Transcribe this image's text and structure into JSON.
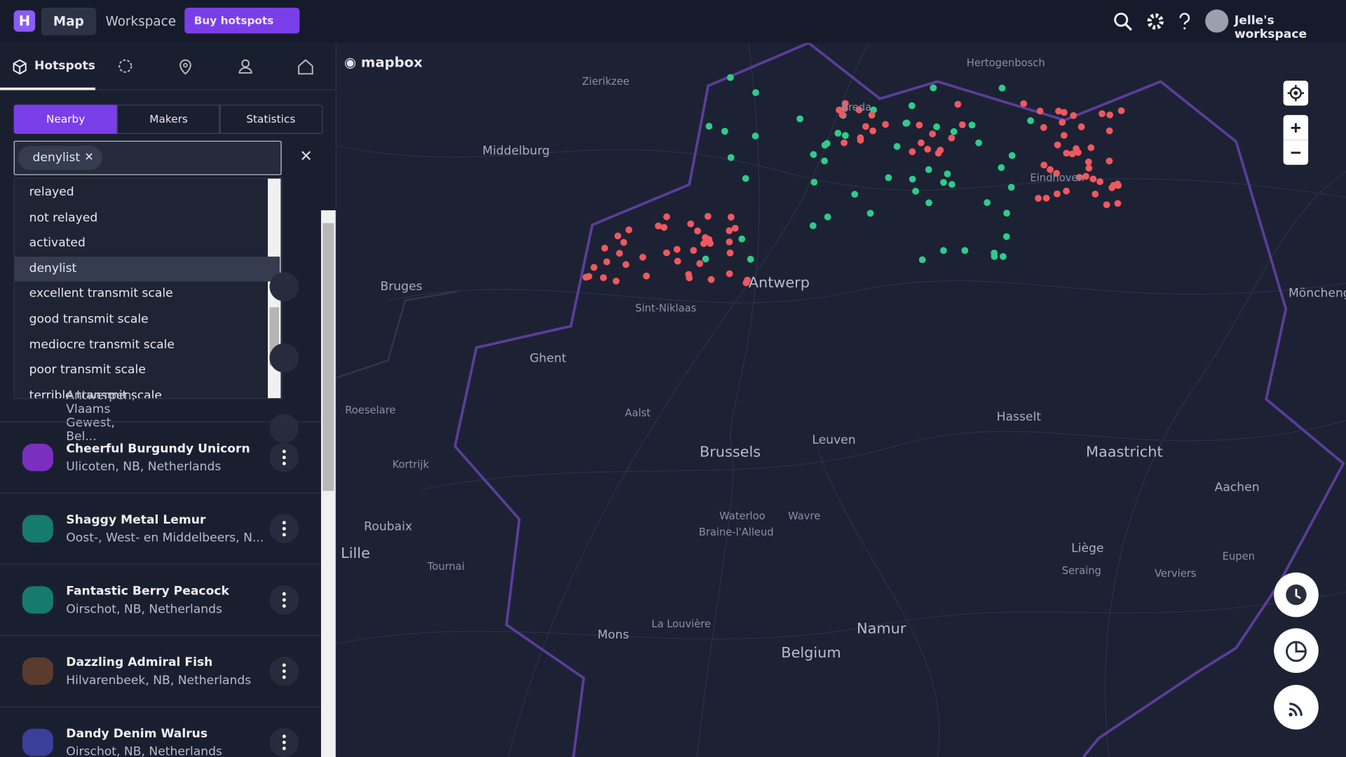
{
  "topbar": {
    "logo": "H",
    "nav": [
      "Map",
      "Workspace"
    ],
    "cta": "Buy hotspots",
    "workspace": "Jelle's workspace"
  },
  "sidebar": {
    "tab": "Hotspots",
    "subtabs": [
      "Nearby",
      "Makers",
      "Statistics"
    ],
    "filter_chip": "denylist",
    "dropdown": [
      "relayed",
      "not relayed",
      "activated",
      "denylist",
      "excellent transmit scale",
      "good transmit scale",
      "mediocre transmit scale",
      "poor transmit scale",
      "terrible transmit scale"
    ],
    "partial_location": "Antwerpen, Vlaams Gewest, Bel...",
    "list": [
      {
        "name": "Cheerful Burgundy Unicorn",
        "location": "Ulicoten, NB, Netherlands"
      },
      {
        "name": "Shaggy Metal Lemur",
        "location": "Oost-, West- en Middelbeers, N..."
      },
      {
        "name": "Fantastic Berry Peacock",
        "location": "Oirschot, NB, Netherlands"
      },
      {
        "name": "Dazzling Admiral Fish",
        "location": "Hilvarenbeek, NB, Netherlands"
      },
      {
        "name": "Dandy Denim Walrus",
        "location": "Oirschot, NB, Netherlands"
      }
    ]
  },
  "map": {
    "attribution": "mapbox",
    "labels": [
      "Zierikzee",
      "Hertogenbosch",
      "Middelburg",
      "Breda",
      "Eindhoven",
      "Bruges",
      "Antwerp",
      "Sint-Niklaas",
      "Ghent",
      "Roeselare",
      "Aalst",
      "Hasselt",
      "Mönchengladbach",
      "Brussels",
      "Leuven",
      "Maastricht",
      "Kortrijk",
      "Aachen",
      "Roubaix",
      "Waterloo",
      "Wavre",
      "Braine-l'Alleud",
      "Lille",
      "Tournai",
      "Liège",
      "Eupen",
      "Seraing",
      "Verviers",
      "Mons",
      "La Louvière",
      "Namur",
      "Belgium"
    ]
  }
}
